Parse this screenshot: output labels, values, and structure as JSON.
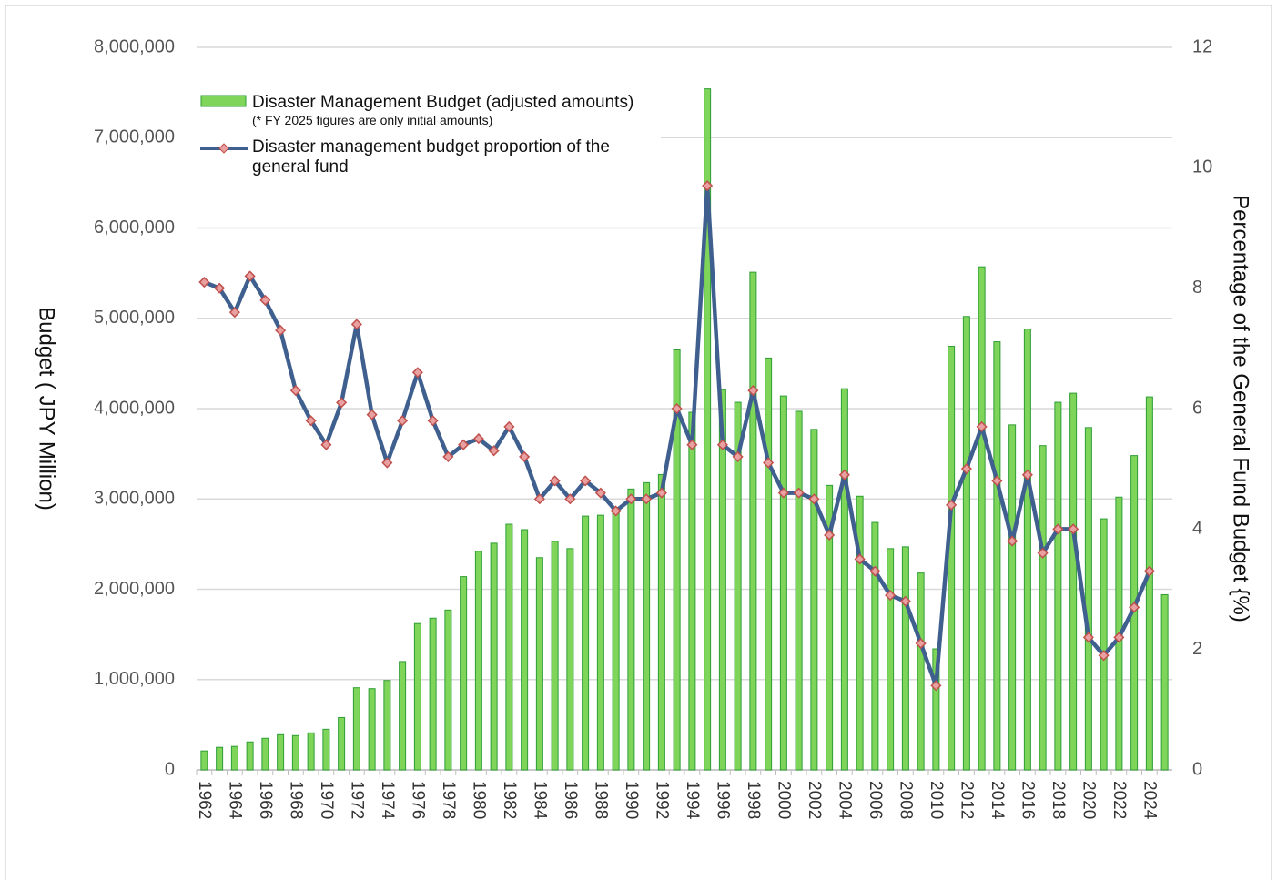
{
  "chart_data": {
    "type": "bar",
    "categories": [
      "1962",
      null,
      "1964",
      null,
      "1966",
      null,
      "1968",
      null,
      "1970",
      null,
      "1972",
      null,
      "1974",
      null,
      "1976",
      null,
      "1978",
      null,
      "1980",
      null,
      "1982",
      null,
      "1984",
      null,
      "1986",
      null,
      "1988",
      null,
      "1990",
      null,
      "1992",
      null,
      "1994",
      null,
      "1996",
      null,
      "1998",
      null,
      "2000",
      null,
      "2002",
      null,
      "2004",
      null,
      "2006",
      null,
      "2008",
      null,
      "2010",
      null,
      "2012",
      null,
      "2014",
      null,
      "2016",
      null,
      "2018",
      null,
      "2020",
      null,
      "2022",
      null,
      "2024",
      null
    ],
    "series": [
      {
        "name": "Disaster Management  Budget (adjusted amounts)",
        "type": "bar",
        "color": "#7fd45a",
        "edge": "#2f9e35",
        "values": [
          210000,
          250000,
          260000,
          310000,
          350000,
          390000,
          380000,
          410000,
          450000,
          580000,
          910000,
          900000,
          990000,
          1200000,
          1620000,
          1680000,
          1770000,
          2140000,
          2420000,
          2510000,
          2720000,
          2660000,
          2350000,
          2530000,
          2450000,
          2810000,
          2820000,
          2880000,
          3110000,
          3180000,
          3270000,
          4650000,
          3960000,
          7540000,
          4210000,
          4070000,
          5510000,
          4560000,
          4140000,
          3970000,
          3770000,
          3150000,
          4220000,
          3030000,
          2740000,
          2450000,
          2470000,
          2180000,
          1340000,
          4690000,
          5020000,
          5570000,
          4740000,
          3820000,
          4880000,
          3590000,
          4070000,
          4170000,
          3790000,
          2780000,
          3020000,
          3480000,
          4130000,
          1940000
        ]
      },
      {
        "name": "Disaster management  budget proportion of the general fund",
        "type": "line",
        "axis": "y2",
        "color": "#3f5f8f",
        "marker_color": "#c0504d",
        "values": [
          8.1,
          8.0,
          7.6,
          8.2,
          7.8,
          7.3,
          6.3,
          5.8,
          5.4,
          6.1,
          7.4,
          5.9,
          5.1,
          5.8,
          6.6,
          5.8,
          5.2,
          5.4,
          5.5,
          5.3,
          5.7,
          5.2,
          4.5,
          4.8,
          4.5,
          4.8,
          4.6,
          4.3,
          4.5,
          4.5,
          4.6,
          6.0,
          5.4,
          9.7,
          5.4,
          5.2,
          6.3,
          5.1,
          4.6,
          4.6,
          4.5,
          3.9,
          4.9,
          3.5,
          3.3,
          2.9,
          2.8,
          2.1,
          1.4,
          4.4,
          5.0,
          5.7,
          4.8,
          3.8,
          4.9,
          3.6,
          4.0,
          4.0,
          2.2,
          1.9,
          2.2,
          2.7,
          3.3,
          null
        ]
      }
    ],
    "legend_note": "(* FY 2025 figures are only initial amounts)",
    "ylabel": "Budget ( JPY Million)",
    "y2label": "Percentage of the General Fund Budget {%)",
    "ylim": [
      0,
      8000000
    ],
    "yticks": [
      0,
      {
        "value": 1000000,
        "label": "1,000,000"
      },
      {
        "value": 2000000,
        "label": "2,000,000"
      },
      {
        "value": 3000000,
        "label": "3,000,000"
      },
      {
        "value": 4000000,
        "label": "4,000,000"
      },
      {
        "value": 5000000,
        "label": "5,000,000"
      },
      {
        "value": 6000000,
        "label": "6,000,000"
      },
      {
        "value": 7000000,
        "label": "7,000,000"
      },
      {
        "value": 8000000,
        "label": "8,000,000"
      }
    ],
    "y2lim": [
      0,
      12
    ],
    "y2ticks": [
      0,
      2,
      4,
      6,
      8,
      10,
      12
    ],
    "grid": true
  }
}
